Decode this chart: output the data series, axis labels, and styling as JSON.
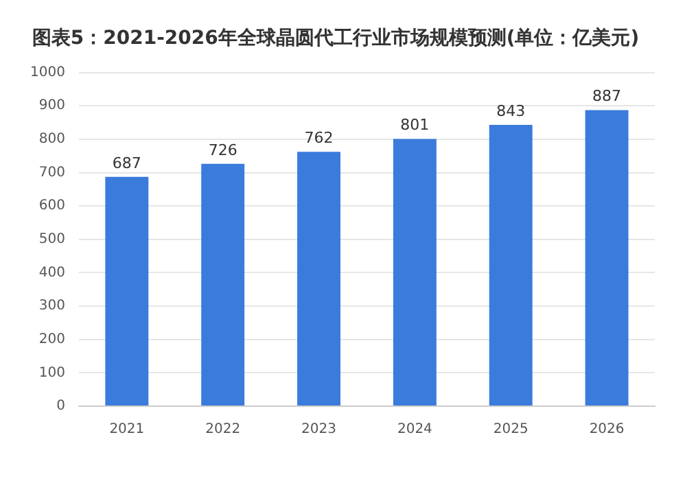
{
  "chart_data": {
    "type": "bar",
    "title": "图表5：2021-2026年全球晶圆代工行业市场规模预测(单位：亿美元)",
    "categories": [
      "2021",
      "2022",
      "2023",
      "2024",
      "2025",
      "2026"
    ],
    "values": [
      687,
      726,
      762,
      801,
      843,
      887
    ],
    "color": "#3b7bdb",
    "ylim": [
      0,
      1000
    ],
    "yticks": [
      0,
      100,
      200,
      300,
      400,
      500,
      600,
      700,
      800,
      900,
      1000
    ],
    "grid": "y",
    "data_labels": true
  }
}
